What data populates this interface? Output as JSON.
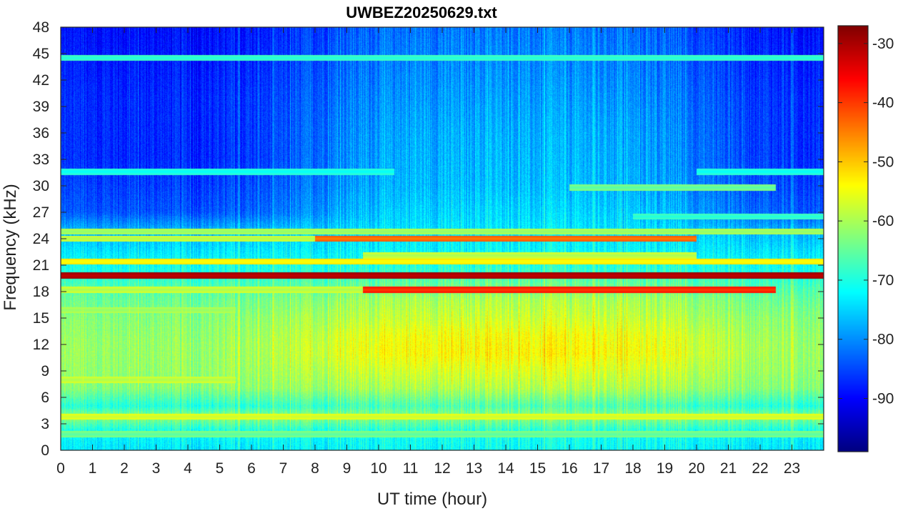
{
  "chart_data": {
    "type": "heatmap",
    "title": "UWBEZ20250629.txt",
    "xlabel": "UT time (hour)",
    "ylabel": "Frequency (kHz)",
    "xlim": [
      0,
      24
    ],
    "ylim": [
      0,
      48
    ],
    "x_ticks": [
      0,
      1,
      2,
      3,
      4,
      5,
      6,
      7,
      8,
      9,
      10,
      11,
      12,
      13,
      14,
      15,
      16,
      17,
      18,
      19,
      20,
      21,
      22,
      23
    ],
    "y_ticks": [
      0,
      3,
      6,
      9,
      12,
      15,
      18,
      21,
      24,
      27,
      30,
      33,
      36,
      39,
      42,
      45,
      48
    ],
    "colormap": "jet",
    "colorbar": {
      "range": [
        -99,
        -27
      ],
      "ticks": [
        -30,
        -40,
        -50,
        -60,
        -70,
        -80,
        -90
      ]
    },
    "grid": false,
    "legend": "none",
    "features": {
      "frequency_profile_day": [
        {
          "f": 0,
          "v": -72
        },
        {
          "f": 2,
          "v": -71
        },
        {
          "f": 3.8,
          "v": -62
        },
        {
          "f": 5,
          "v": -67
        },
        {
          "f": 7,
          "v": -60
        },
        {
          "f": 9,
          "v": -57
        },
        {
          "f": 11,
          "v": -54
        },
        {
          "f": 13,
          "v": -55
        },
        {
          "f": 15,
          "v": -58
        },
        {
          "f": 17,
          "v": -60
        },
        {
          "f": 18.5,
          "v": -64
        },
        {
          "f": 20,
          "v": -68
        },
        {
          "f": 22,
          "v": -72
        },
        {
          "f": 25,
          "v": -74
        },
        {
          "f": 30,
          "v": -77
        },
        {
          "f": 36,
          "v": -78
        },
        {
          "f": 42,
          "v": -80
        },
        {
          "f": 48,
          "v": -82
        }
      ],
      "frequency_profile_night": [
        {
          "f": 0,
          "v": -74
        },
        {
          "f": 2,
          "v": -72
        },
        {
          "f": 3.8,
          "v": -62
        },
        {
          "f": 5,
          "v": -70
        },
        {
          "f": 7,
          "v": -63
        },
        {
          "f": 9,
          "v": -62
        },
        {
          "f": 12,
          "v": -62
        },
        {
          "f": 15,
          "v": -63
        },
        {
          "f": 17,
          "v": -65
        },
        {
          "f": 18.5,
          "v": -67
        },
        {
          "f": 20,
          "v": -70
        },
        {
          "f": 22,
          "v": -73
        },
        {
          "f": 25,
          "v": -78
        },
        {
          "f": 27,
          "v": -85
        },
        {
          "f": 33,
          "v": -88
        },
        {
          "f": 40,
          "v": -88
        },
        {
          "f": 48,
          "v": -90
        }
      ],
      "daytime_weight": [
        {
          "t": 0,
          "w": 0.1
        },
        {
          "t": 5,
          "w": 0.05
        },
        {
          "t": 7,
          "w": 0.3
        },
        {
          "t": 9,
          "w": 0.75
        },
        {
          "t": 11,
          "w": 1.0
        },
        {
          "t": 17,
          "w": 1.0
        },
        {
          "t": 19,
          "w": 0.8
        },
        {
          "t": 21,
          "w": 0.4
        },
        {
          "t": 23,
          "w": 0.15
        },
        {
          "t": 24,
          "w": 0.1
        }
      ],
      "transmitter_lines": [
        {
          "f": 19.8,
          "value": -32,
          "t_start": 0,
          "t_end": 24
        },
        {
          "f": 18.2,
          "value": -40,
          "t_start": 9.5,
          "t_end": 22.5
        },
        {
          "f": 18.2,
          "value": -60,
          "t_start": 0,
          "t_end": 9.5
        },
        {
          "f": 21.4,
          "value": -55,
          "t_start": 0,
          "t_end": 24
        },
        {
          "f": 22.1,
          "value": -60,
          "t_start": 9.5,
          "t_end": 20
        },
        {
          "f": 24.0,
          "value": -45,
          "t_start": 8,
          "t_end": 20
        },
        {
          "f": 24.0,
          "value": -60,
          "t_start": 0,
          "t_end": 8
        },
        {
          "f": 24.8,
          "value": -62,
          "t_start": 0,
          "t_end": 24
        },
        {
          "f": 3.8,
          "value": -58,
          "t_start": 0,
          "t_end": 24
        },
        {
          "f": 44.5,
          "value": -70,
          "t_start": 0,
          "t_end": 24
        },
        {
          "f": 31.6,
          "value": -72,
          "t_start": 0,
          "t_end": 10.5
        },
        {
          "f": 31.6,
          "value": -72,
          "t_start": 20,
          "t_end": 24
        },
        {
          "f": 29.8,
          "value": -66,
          "t_start": 16,
          "t_end": 22.5
        },
        {
          "f": 26.5,
          "value": -70,
          "t_start": 18,
          "t_end": 24
        },
        {
          "f": 8.0,
          "value": -60,
          "t_start": 0,
          "t_end": 5.5
        },
        {
          "f": 15.9,
          "value": -62,
          "t_start": 0,
          "t_end": 5.5
        },
        {
          "f": 1.8,
          "value": -66,
          "t_start": 0,
          "t_end": 24
        }
      ]
    }
  }
}
